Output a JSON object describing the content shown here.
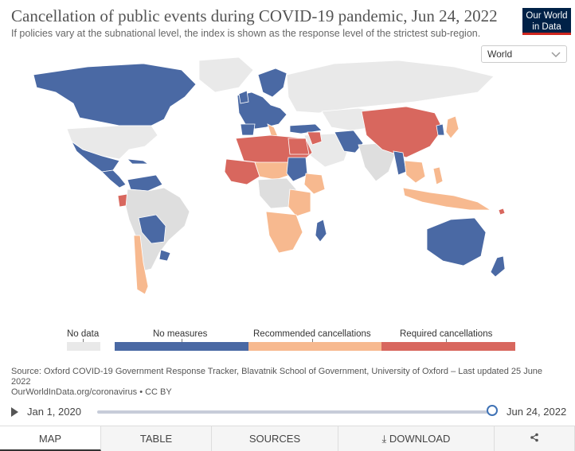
{
  "header": {
    "title": "Cancellation of public events during COVID-19 pandemic, Jun 24, 2022",
    "subtitle": "If policies vary at the subnational level, the index is shown as the response level of the strictest sub-region.",
    "logo_line1": "Our World",
    "logo_line2": "in Data"
  },
  "region_select": {
    "value": "World"
  },
  "legend": {
    "items": [
      {
        "label": "No data",
        "color": "#e9e9e9"
      },
      {
        "label": "No measures",
        "color": "#4a69a4"
      },
      {
        "label": "Recommended cancellations",
        "color": "#f7b98f"
      },
      {
        "label": "Required cancellations",
        "color": "#d8675e"
      }
    ]
  },
  "map_data": {
    "colors": {
      "land_default": "#dedede",
      "border": "#ffffff"
    },
    "regions": [
      {
        "name": "North America",
        "category": "No measures"
      },
      {
        "name": "Mexico & Central America",
        "category": "No measures"
      },
      {
        "name": "South America",
        "category": "No measures"
      },
      {
        "name": "Ecuador",
        "category": "Required cancellations"
      },
      {
        "name": "Chile & Argentina",
        "category": "Recommended cancellations"
      },
      {
        "name": "Europe",
        "category": "No measures"
      },
      {
        "name": "North Africa",
        "category": "Required cancellations"
      },
      {
        "name": "West Africa",
        "category": "Required cancellations"
      },
      {
        "name": "Sudan",
        "category": "No measures"
      },
      {
        "name": "East Africa",
        "category": "Recommended cancellations"
      },
      {
        "name": "Southern Africa",
        "category": "Recommended cancellations"
      },
      {
        "name": "Madagascar",
        "category": "No measures"
      },
      {
        "name": "China",
        "category": "Required cancellations"
      },
      {
        "name": "Japan & Korea",
        "category": "Recommended cancellations"
      },
      {
        "name": "Southeast Asia",
        "category": "Recommended cancellations"
      },
      {
        "name": "Australia & New Zealand",
        "category": "No measures"
      },
      {
        "name": "Russia & Central Asia",
        "category": "No data"
      }
    ]
  },
  "source": {
    "line1": "Source: Oxford COVID-19 Government Response Tracker, Blavatnik School of Government, University of Oxford – Last updated 25 June",
    "line2": "2022",
    "line3": "OurWorldInData.org/coronavirus • CC BY"
  },
  "timeline": {
    "start": "Jan 1, 2020",
    "end": "Jun 24, 2022",
    "position": 1.0
  },
  "tabs": [
    {
      "label": "MAP",
      "active": true
    },
    {
      "label": "TABLE",
      "active": false
    },
    {
      "label": "SOURCES",
      "active": false
    },
    {
      "label": "⤓ DOWNLOAD",
      "active": false
    },
    {
      "label": "",
      "active": false,
      "icon": "share-icon"
    }
  ]
}
